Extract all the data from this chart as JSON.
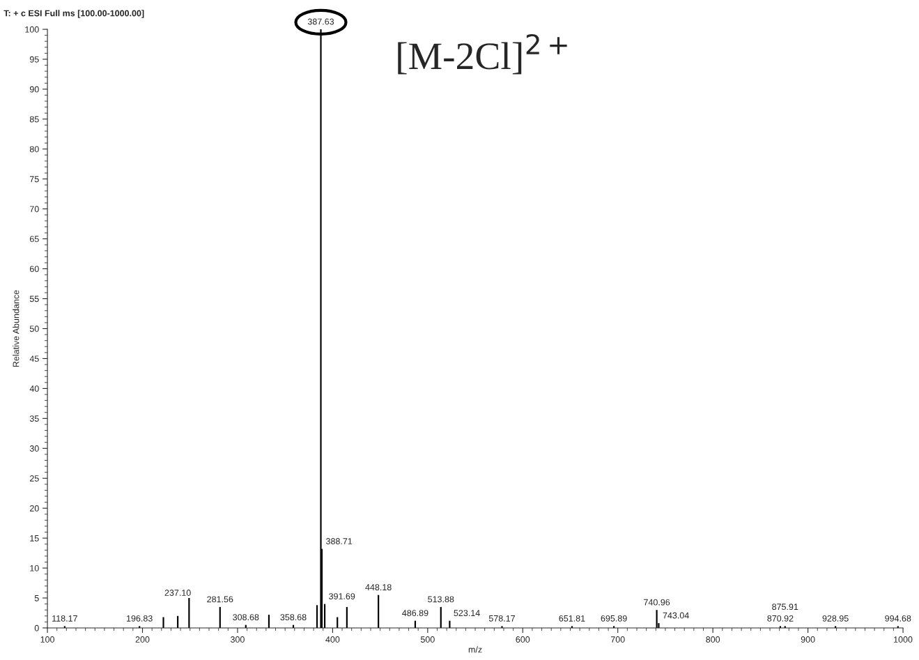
{
  "chart_data": {
    "type": "bar",
    "xlabel": "m/z",
    "ylabel": "Relative Abundance",
    "color": "#000000",
    "x": [
      118.17,
      196.83,
      222,
      237.1,
      249,
      281.56,
      308.68,
      333,
      358.68,
      383.6,
      387.63,
      388.71,
      391.69,
      405,
      415,
      448.18,
      486.89,
      513.88,
      523.14,
      578.17,
      651.81,
      695.89,
      740.96,
      743.04,
      870.92,
      875.91,
      928.95,
      994.68
    ],
    "values": [
      0.3,
      0.3,
      1.8,
      2,
      5,
      3.5,
      0.5,
      2.2,
      0.5,
      3.8,
      100,
      13.2,
      4,
      1.8,
      3.5,
      5.5,
      1.2,
      3.5,
      1.2,
      0.3,
      0.3,
      0.3,
      3,
      0.8,
      0.3,
      0.3,
      0.3,
      0.3
    ],
    "xlim": [
      100,
      1000
    ],
    "xticks": [
      100,
      200,
      300,
      400,
      500,
      600,
      700,
      800,
      900,
      1000
    ],
    "ylim": [
      0,
      100
    ],
    "yticks": [
      0,
      5,
      10,
      15,
      20,
      25,
      30,
      35,
      40,
      45,
      50,
      55,
      60,
      65,
      70,
      75,
      80,
      85,
      90,
      95,
      100
    ],
    "grid": false,
    "annotations": [
      "T: + c ESI Full ms [100.00-1000.00]",
      "[M-2Cl]$^{2+}$",
      {
        "text": "118.17",
        "x": 118.17,
        "y": 0.3
      },
      {
        "text": "196.83",
        "x": 196.83,
        "y": 0.3
      },
      {
        "text": "237.10",
        "x": 237.1,
        "y": 2
      },
      {
        "text": "281.56",
        "x": 281.56,
        "y": 3.5
      },
      {
        "text": "308.68",
        "x": 308.68,
        "y": 0.5
      },
      {
        "text": "358.68",
        "x": 358.68,
        "y": 0.5
      },
      {
        "text": "387.63",
        "x": 387.63,
        "y": 100
      },
      {
        "text": "388.71",
        "x": 388.71,
        "y": 13.2
      },
      {
        "text": "391.69",
        "x": 391.69,
        "y": 4
      },
      {
        "text": "448.18",
        "x": 448.18,
        "y": 5.5
      },
      {
        "text": "486.89",
        "x": 486.89,
        "y": 1.2
      },
      {
        "text": "513.88",
        "x": 513.88,
        "y": 3.5
      },
      {
        "text": "523.14",
        "x": 523.14,
        "y": 1.2
      },
      {
        "text": "578.17",
        "x": 578.17,
        "y": 0.3
      },
      {
        "text": "651.81",
        "x": 651.81,
        "y": 0.3
      },
      {
        "text": "695.89",
        "x": 695.89,
        "y": 0.3
      },
      {
        "text": "740.96",
        "x": 740.96,
        "y": 3
      },
      {
        "text": "743.04",
        "x": 743.04,
        "y": 0.8
      },
      {
        "text": "870.92",
        "x": 870.92,
        "y": 0.3
      },
      {
        "text": "875.91",
        "x": 875.91,
        "y": 0.3
      },
      {
        "text": "928.95",
        "x": 928.95,
        "y": 0.3
      },
      {
        "text": "994.68",
        "x": 994.68,
        "y": 0.3
      }
    ]
  }
}
